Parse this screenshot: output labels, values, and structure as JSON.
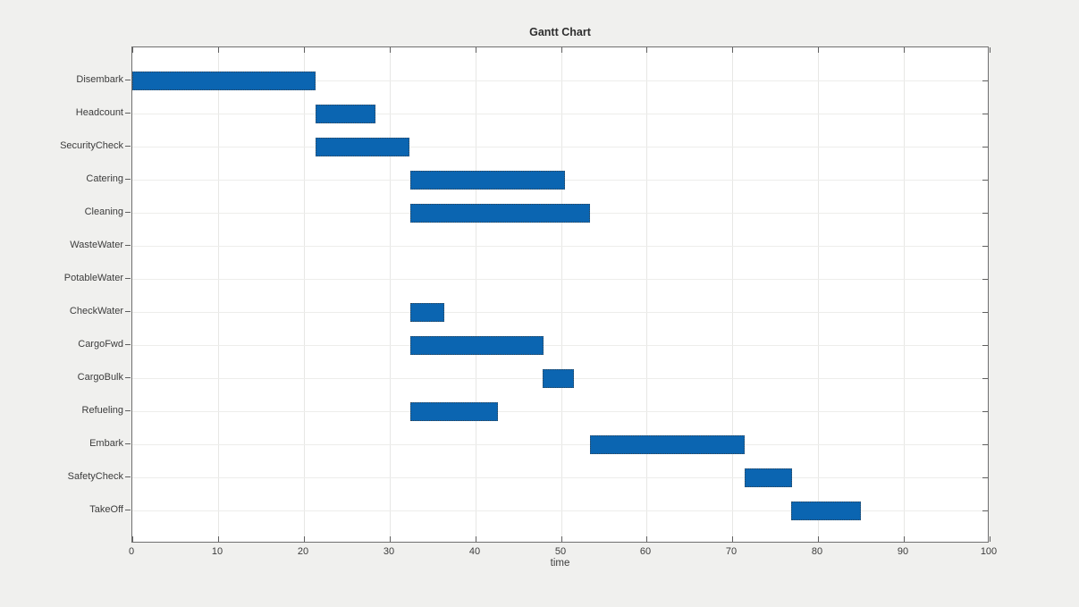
{
  "figure": {
    "background_color": "#f0f0ee",
    "plot_background_color": "#ffffff"
  },
  "chart_data": {
    "type": "bar",
    "subtype": "gantt",
    "orientation": "horizontal",
    "title": "Gantt Chart",
    "xlabel": "time",
    "ylabel": "",
    "xlim": [
      0,
      100
    ],
    "xticks": [
      0,
      10,
      20,
      30,
      40,
      50,
      60,
      70,
      80,
      90,
      100
    ],
    "grid": true,
    "legend": false,
    "bar_color": "#0b65b1",
    "bar_edge_color": "#3c3c3c",
    "categories": [
      "Disembark",
      "Headcount",
      "SecurityCheck",
      "Catering",
      "Cleaning",
      "WasteWater",
      "PotableWater",
      "CheckWater",
      "CargoFwd",
      "CargoBulk",
      "Refueling",
      "Embark",
      "SafetyCheck",
      "TakeOff"
    ],
    "tasks": [
      {
        "name": "Disembark",
        "start": 0,
        "end": 21.4
      },
      {
        "name": "Headcount",
        "start": 21.4,
        "end": 28.4
      },
      {
        "name": "SecurityCheck",
        "start": 21.4,
        "end": 32.4
      },
      {
        "name": "Catering",
        "start": 32.4,
        "end": 50.4
      },
      {
        "name": "Cleaning",
        "start": 32.4,
        "end": 53.4
      },
      {
        "name": "WasteWater",
        "start": null,
        "end": null
      },
      {
        "name": "PotableWater",
        "start": null,
        "end": null
      },
      {
        "name": "CheckWater",
        "start": 32.4,
        "end": 36.4
      },
      {
        "name": "CargoFwd",
        "start": 32.4,
        "end": 47.9
      },
      {
        "name": "CargoBulk",
        "start": 47.9,
        "end": 51.6
      },
      {
        "name": "Refueling",
        "start": 32.4,
        "end": 42.6
      },
      {
        "name": "Embark",
        "start": 53.4,
        "end": 71.4
      },
      {
        "name": "SafetyCheck",
        "start": 71.4,
        "end": 76.9
      },
      {
        "name": "TakeOff",
        "start": 76.9,
        "end": 85.0
      }
    ]
  }
}
